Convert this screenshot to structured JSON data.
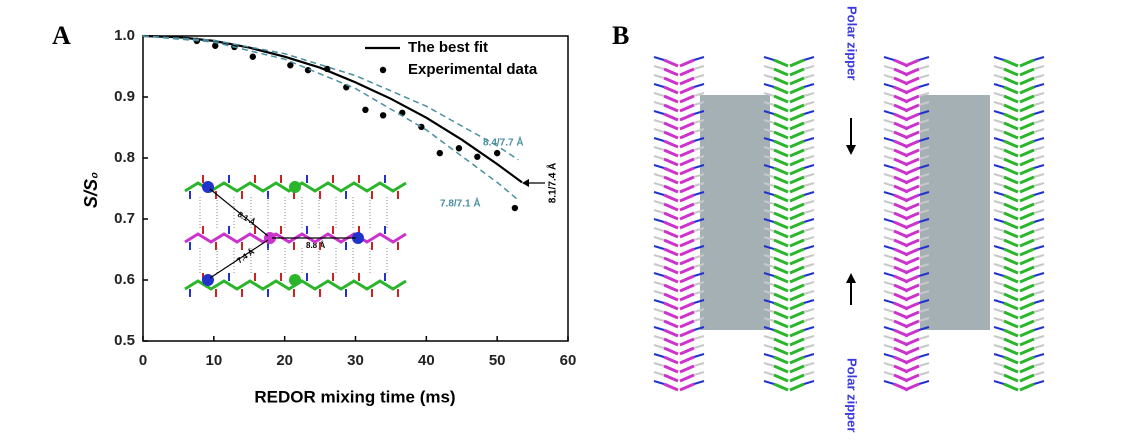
{
  "chart_data": {
    "type": "line",
    "panel_label": "A",
    "x_label": "REDOR mixing time (ms)",
    "y_label": "S/S₀",
    "xlim": [
      0,
      60
    ],
    "xticks": [
      0,
      10,
      20,
      30,
      40,
      50,
      60
    ],
    "ylim": [
      0.5,
      1.0
    ],
    "yticks": [
      {
        "value": 0.5,
        "label": "0.5"
      },
      {
        "value": 0.6,
        "label": "0.6"
      },
      {
        "value": 0.7,
        "label": "0.7"
      },
      {
        "value": 0.8,
        "label": "0.8"
      },
      {
        "value": 0.9,
        "label": "0.9"
      },
      {
        "value": 1.0,
        "label": "1.0"
      }
    ],
    "series": [
      {
        "name": "The best fit",
        "color": "#000000",
        "style": "solid",
        "x": [
          0,
          5,
          10,
          15,
          20,
          25,
          30,
          35,
          40,
          45,
          50,
          53.5
        ],
        "values": [
          1.0,
          0.998,
          0.992,
          0.981,
          0.966,
          0.948,
          0.924,
          0.897,
          0.866,
          0.83,
          0.79,
          0.76
        ]
      },
      {
        "name": "Experimental data",
        "color": "#000000",
        "style": "scatter",
        "x": [
          7.6,
          10.2,
          12.9,
          15.5,
          20.8,
          23.3,
          26,
          28.7,
          31.4,
          33.9,
          36.6,
          39.3,
          41.9,
          44.6,
          47.2,
          50,
          52.5
        ],
        "values": [
          0.992,
          0.984,
          0.982,
          0.966,
          0.952,
          0.944,
          0.946,
          0.916,
          0.879,
          0.87,
          0.874,
          0.851,
          0.808,
          0.816,
          0.802,
          0.808,
          0.718
        ]
      },
      {
        "color": "#4a8fa0",
        "style": "dashed",
        "x": [
          0,
          10,
          20,
          30,
          40,
          50,
          53
        ],
        "values": [
          1.0,
          0.993,
          0.971,
          0.935,
          0.885,
          0.82,
          0.797
        ]
      },
      {
        "color": "#4a8fa0",
        "style": "dashed",
        "x": [
          0,
          10,
          20,
          30,
          40,
          50,
          53
        ],
        "values": [
          1.0,
          0.99,
          0.962,
          0.914,
          0.846,
          0.76,
          0.731
        ]
      }
    ],
    "annotations": [
      "8.4/7.7 Å",
      "7.8/7.1 Å",
      "8.1/7.4 Å",
      "8.1 Å",
      "7.4 Å",
      "8.8 Å"
    ]
  },
  "panel_b": {
    "panel_label": "B",
    "labels": [
      "Polar zipper",
      "Polar zipper"
    ]
  }
}
